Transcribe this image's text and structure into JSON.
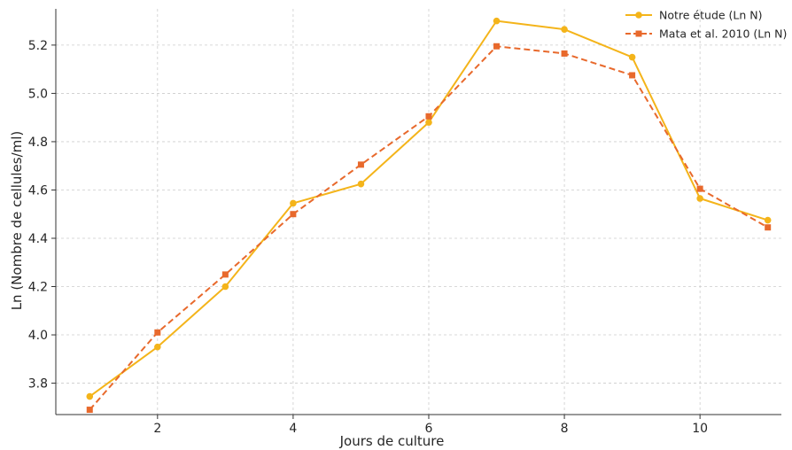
{
  "chart_data": {
    "type": "line",
    "title": "",
    "xlabel": "Jours de culture",
    "ylabel": "Ln (Nombre de cellules/ml)",
    "x": [
      1,
      2,
      3,
      4,
      5,
      6,
      7,
      8,
      9,
      10,
      11
    ],
    "xlim": [
      0.5,
      11.2
    ],
    "ylim": [
      3.67,
      5.35
    ],
    "xticks": [
      2,
      4,
      6,
      8,
      10
    ],
    "xtick_labels": [
      "2",
      "4",
      "6",
      "8",
      "10"
    ],
    "yticks": [
      3.8,
      4.0,
      4.2,
      4.4,
      4.6,
      4.8,
      5.0,
      5.2
    ],
    "ytick_labels": [
      "3.8",
      "4.0",
      "4.2",
      "4.4",
      "4.6",
      "4.8",
      "5.0",
      "5.2"
    ],
    "grid": true,
    "legend_position": "top-right",
    "series": [
      {
        "name": "Notre étude (Ln N)",
        "values": [
          3.745,
          3.95,
          4.2,
          4.545,
          4.625,
          4.88,
          5.3,
          5.265,
          5.15,
          4.565,
          4.475
        ],
        "color": "#f4b41a",
        "marker": "circle",
        "linestyle": "solid"
      },
      {
        "name": "Mata et al. 2010 (Ln N)",
        "values": [
          3.69,
          4.01,
          4.25,
          4.5,
          4.705,
          4.905,
          5.195,
          5.165,
          5.075,
          4.605,
          4.445
        ],
        "color": "#e8692c",
        "marker": "square",
        "linestyle": "dashed"
      }
    ]
  }
}
